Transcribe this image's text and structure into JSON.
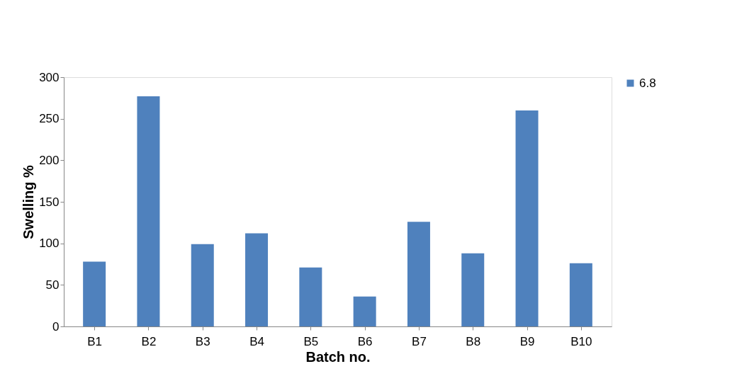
{
  "chart_data": {
    "type": "bar",
    "xlabel": "Batch no.",
    "ylabel": "Swelling %",
    "categories": [
      "B1",
      "B2",
      "B3",
      "B4",
      "B5",
      "B6",
      "B7",
      "B8",
      "B9",
      "B10"
    ],
    "series": [
      {
        "name": "6.8",
        "color": "#4f81bd",
        "values": [
          78,
          277,
          99,
          112,
          71,
          36,
          126,
          88,
          260,
          76
        ]
      }
    ],
    "ylim": [
      0,
      300
    ],
    "yticks": [
      0,
      50,
      100,
      150,
      200,
      250,
      300
    ],
    "grid": false,
    "legend": "right"
  }
}
